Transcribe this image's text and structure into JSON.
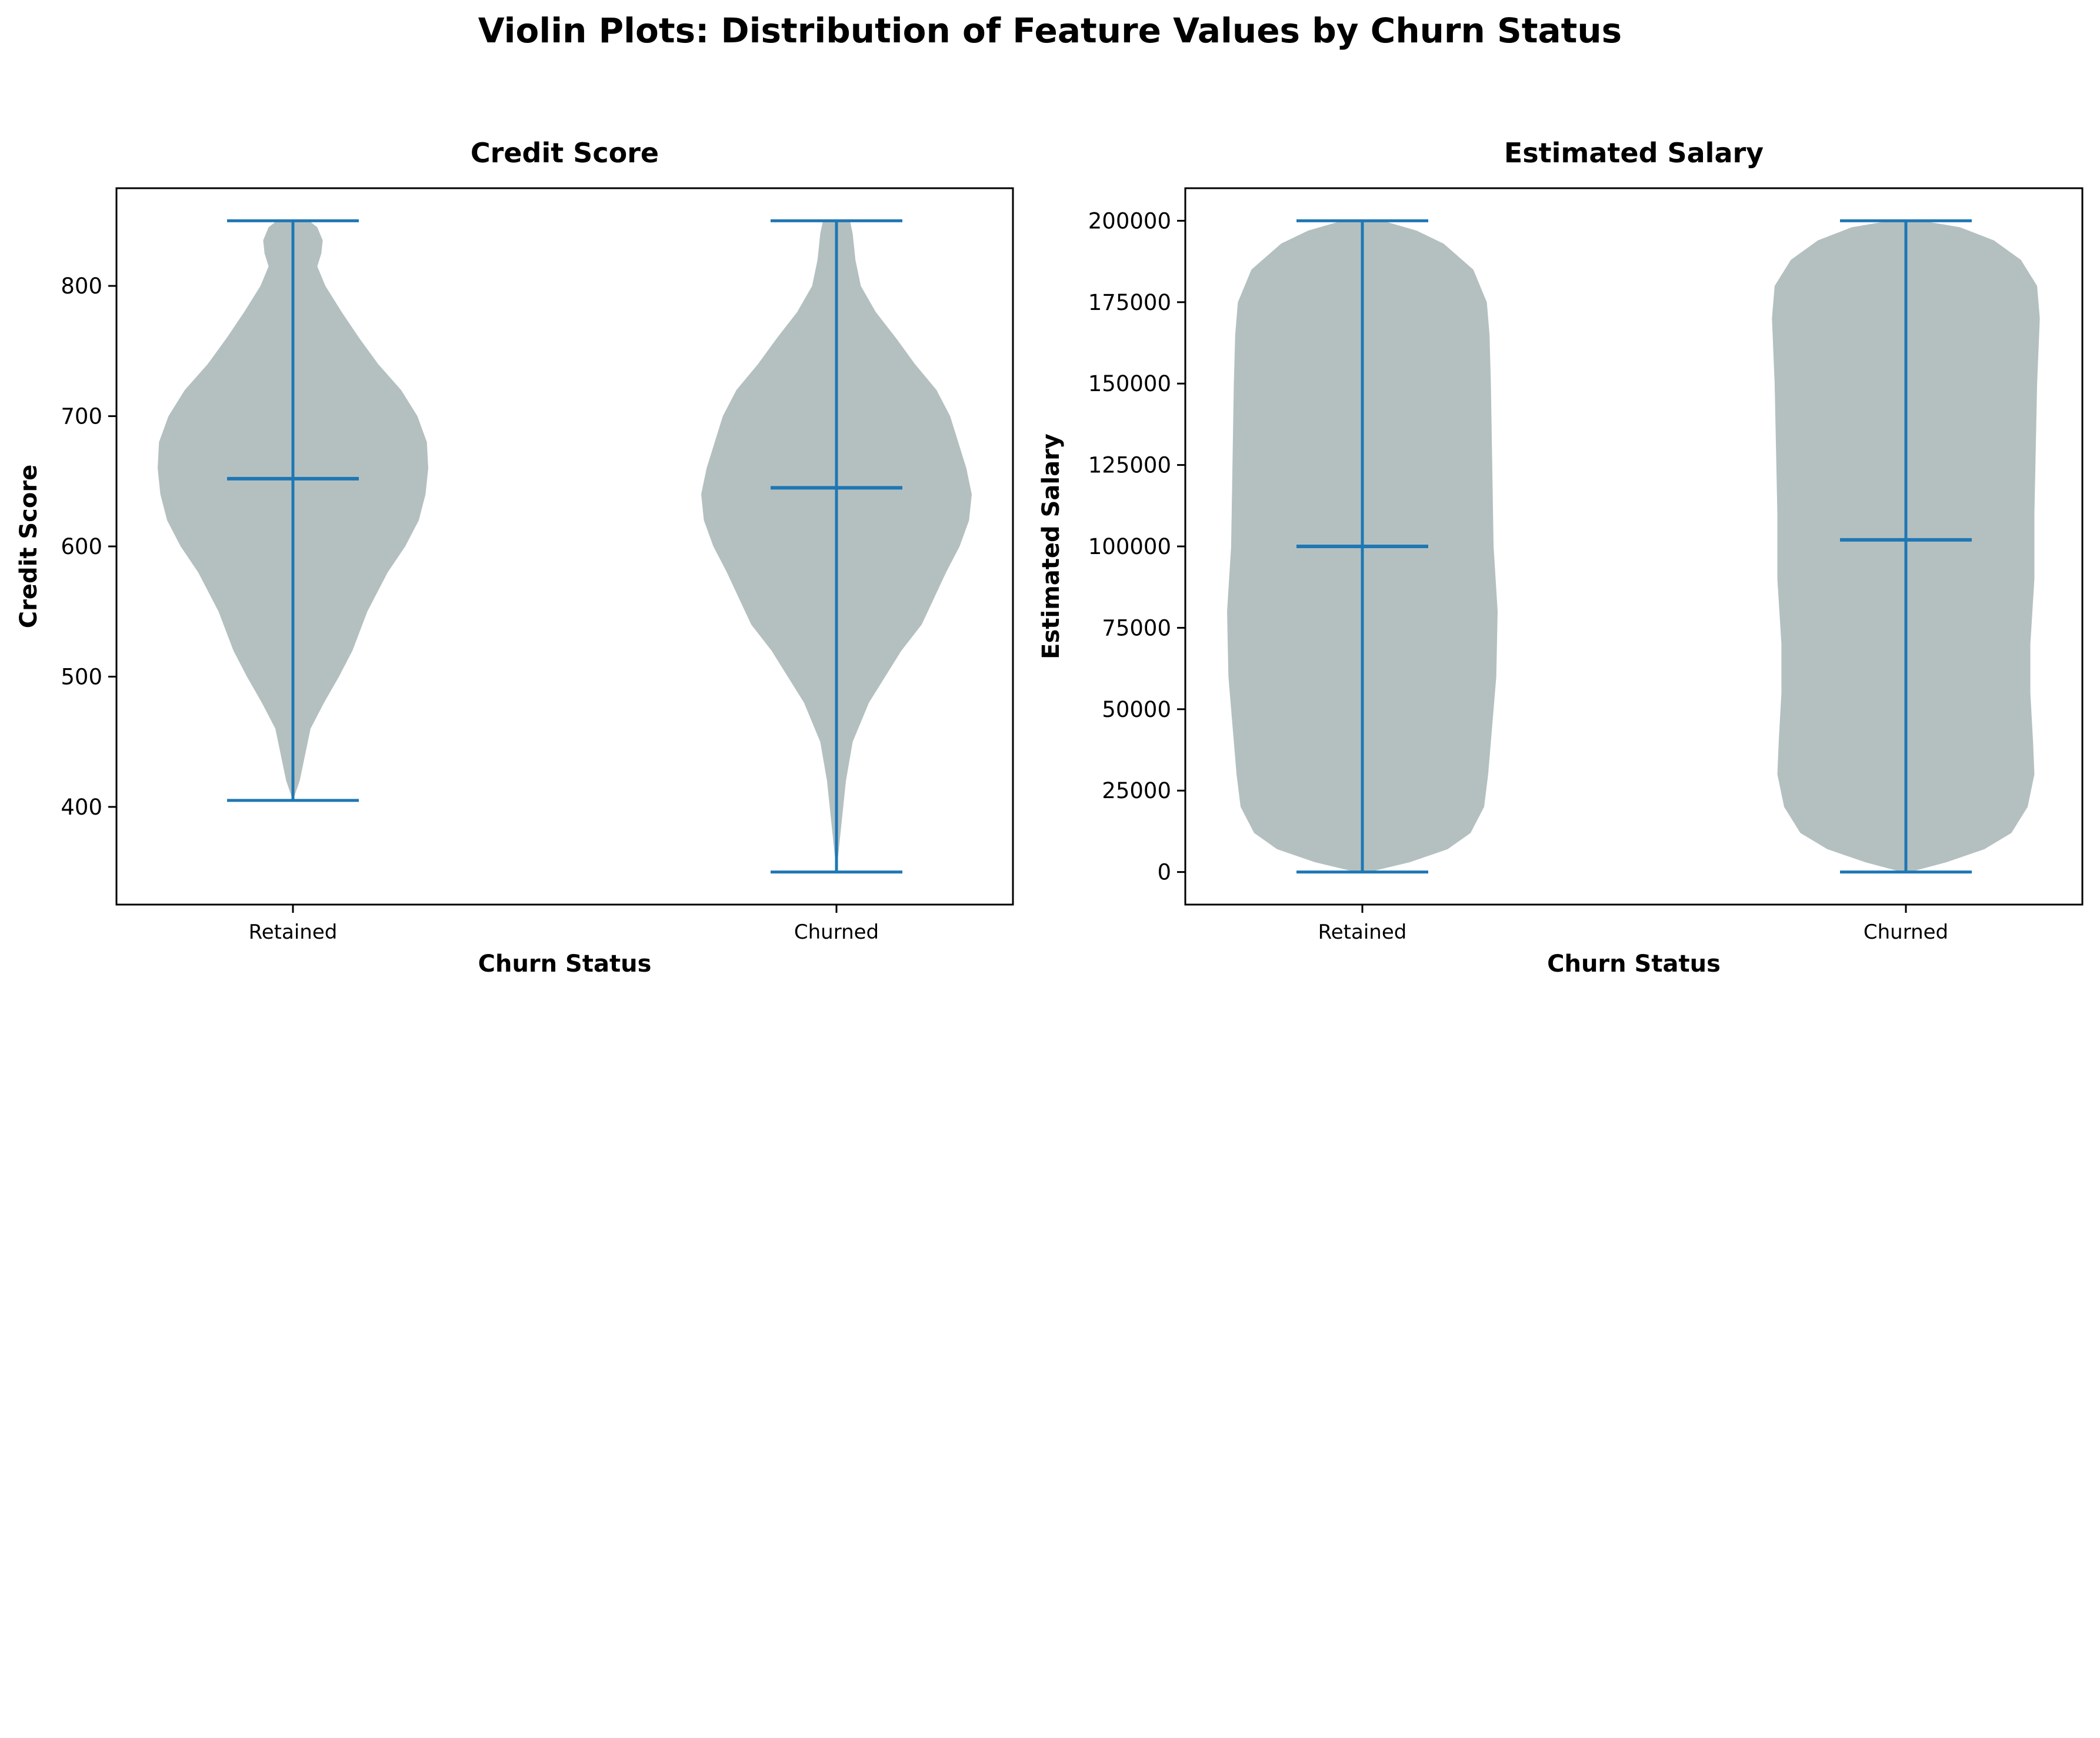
{
  "figure": {
    "title": "Violin Plots: Distribution of Feature Values by Churn Status"
  },
  "colors": {
    "violin_fill": "#b4c0c0",
    "line": "#1f77b4",
    "frame": "#000000"
  },
  "chart_data": [
    {
      "type": "violin",
      "title": "Credit Score",
      "xlabel": "Churn Status",
      "ylabel": "Credit Score",
      "categories": [
        "Retained",
        "Churned"
      ],
      "ylim": [
        325,
        875
      ],
      "yticks": [
        400,
        500,
        600,
        700,
        800
      ],
      "ytick_labels": [
        "400",
        "500",
        "600",
        "700",
        "800"
      ],
      "violins": [
        {
          "category": "Retained",
          "min": 405,
          "max": 850,
          "median": 652,
          "profile": [
            [
              405,
              0.0
            ],
            [
              420,
              0.05
            ],
            [
              440,
              0.09
            ],
            [
              460,
              0.13
            ],
            [
              480,
              0.23
            ],
            [
              500,
              0.34
            ],
            [
              520,
              0.44
            ],
            [
              550,
              0.55
            ],
            [
              580,
              0.7
            ],
            [
              600,
              0.83
            ],
            [
              620,
              0.93
            ],
            [
              640,
              0.98
            ],
            [
              660,
              1.0
            ],
            [
              680,
              0.99
            ],
            [
              700,
              0.92
            ],
            [
              720,
              0.8
            ],
            [
              740,
              0.63
            ],
            [
              760,
              0.49
            ],
            [
              780,
              0.36
            ],
            [
              800,
              0.24
            ],
            [
              815,
              0.18
            ],
            [
              825,
              0.21
            ],
            [
              835,
              0.22
            ],
            [
              845,
              0.18
            ],
            [
              850,
              0.12
            ]
          ]
        },
        {
          "category": "Churned",
          "min": 350,
          "max": 850,
          "median": 645,
          "profile": [
            [
              350,
              0.0
            ],
            [
              370,
              0.02
            ],
            [
              390,
              0.04
            ],
            [
              420,
              0.07
            ],
            [
              450,
              0.12
            ],
            [
              480,
              0.24
            ],
            [
              500,
              0.36
            ],
            [
              520,
              0.48
            ],
            [
              540,
              0.63
            ],
            [
              560,
              0.72
            ],
            [
              580,
              0.81
            ],
            [
              600,
              0.91
            ],
            [
              620,
              0.98
            ],
            [
              640,
              1.0
            ],
            [
              660,
              0.96
            ],
            [
              680,
              0.9
            ],
            [
              700,
              0.84
            ],
            [
              720,
              0.74
            ],
            [
              740,
              0.58
            ],
            [
              760,
              0.44
            ],
            [
              780,
              0.29
            ],
            [
              800,
              0.18
            ],
            [
              820,
              0.14
            ],
            [
              840,
              0.12
            ],
            [
              850,
              0.1
            ]
          ]
        }
      ]
    },
    {
      "type": "violin",
      "title": "Estimated Salary",
      "xlabel": "Churn Status",
      "ylabel": "Estimated Salary",
      "categories": [
        "Retained",
        "Churned"
      ],
      "ylim": [
        -10000,
        210000
      ],
      "yticks": [
        0,
        25000,
        50000,
        75000,
        100000,
        125000,
        150000,
        175000,
        200000
      ],
      "ytick_labels": [
        "0",
        "25000",
        "50000",
        "75000",
        "100000",
        "125000",
        "150000",
        "175000",
        "200000"
      ],
      "violins": [
        {
          "category": "Retained",
          "min": 0,
          "max": 200000,
          "median": 100000,
          "profile": [
            [
              0,
              0.05
            ],
            [
              3000,
              0.35
            ],
            [
              7000,
              0.63
            ],
            [
              12000,
              0.8
            ],
            [
              20000,
              0.9
            ],
            [
              30000,
              0.93
            ],
            [
              45000,
              0.96
            ],
            [
              60000,
              0.99
            ],
            [
              80000,
              1.0
            ],
            [
              100000,
              0.97
            ],
            [
              125000,
              0.96
            ],
            [
              150000,
              0.95
            ],
            [
              165000,
              0.94
            ],
            [
              175000,
              0.92
            ],
            [
              185000,
              0.82
            ],
            [
              193000,
              0.6
            ],
            [
              197000,
              0.4
            ],
            [
              200000,
              0.15
            ]
          ]
        },
        {
          "category": "Churned",
          "min": 0,
          "max": 200000,
          "median": 102000,
          "profile": [
            [
              0,
              0.03
            ],
            [
              3000,
              0.3
            ],
            [
              7000,
              0.58
            ],
            [
              12000,
              0.78
            ],
            [
              20000,
              0.9
            ],
            [
              30000,
              0.95
            ],
            [
              40000,
              0.94
            ],
            [
              55000,
              0.92
            ],
            [
              70000,
              0.92
            ],
            [
              90000,
              0.95
            ],
            [
              110000,
              0.95
            ],
            [
              130000,
              0.96
            ],
            [
              150000,
              0.97
            ],
            [
              170000,
              0.99
            ],
            [
              180000,
              0.97
            ],
            [
              188000,
              0.85
            ],
            [
              194000,
              0.65
            ],
            [
              198000,
              0.4
            ],
            [
              200000,
              0.12
            ]
          ]
        }
      ]
    }
  ]
}
